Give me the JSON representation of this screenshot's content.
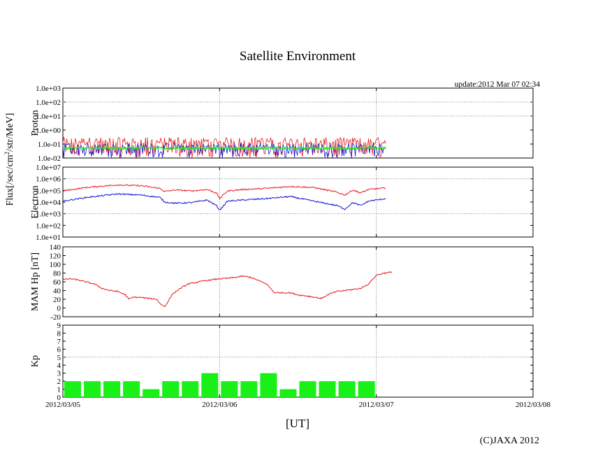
{
  "title": "Satellite Environment",
  "update": "update:2012 Mar 07 02:34",
  "copyright": "(C)JAXA 2012",
  "xlabel": "[UT]",
  "xticks": [
    "2012/03/05",
    "2012/03/06",
    "2012/03/07",
    "2012/03/08"
  ],
  "flux_label": "Flux[/sec/cm2/str/MeV]",
  "colors": {
    "red": "#e8191e",
    "blue": "#1414d2",
    "green": "#18f018",
    "grid": "#999999"
  },
  "chart_data": [
    {
      "type": "line",
      "panel": "proton",
      "ylabel": "Proton",
      "yscale": "log",
      "ylim": [
        0.01,
        1000
      ],
      "ytick_labels": [
        "1.0e+03",
        "1.0e+02",
        "1.0e+01",
        "1.0e+00",
        "1.0e-01",
        "1.0e-02"
      ],
      "xlim_days": [
        0,
        3
      ],
      "grid": "vertical dotted at day boundaries",
      "series": [
        {
          "color": "red",
          "x_range_days": [
            0,
            2.06
          ],
          "y_typical": 0.08,
          "y_max": 0.3,
          "y_min": 0.01
        },
        {
          "color": "blue",
          "x_range_days": [
            0,
            2.06
          ],
          "y_typical": 0.04,
          "y_max": 0.12,
          "y_min": 0.01
        },
        {
          "color": "green",
          "x_range_days": [
            0,
            2.06
          ],
          "y_typical": 0.05,
          "y_max": 0.07,
          "y_min": 0.04
        }
      ]
    },
    {
      "type": "line",
      "panel": "electron",
      "ylabel": "Electron",
      "yscale": "log",
      "ylim": [
        10,
        10000000
      ],
      "ytick_labels": [
        "1.0e+07",
        "1.0e+06",
        "1.0e+05",
        "1.0e+04",
        "1.0e+03",
        "1.0e+02",
        "1.0e+01"
      ],
      "xlim_days": [
        0,
        3
      ],
      "series": [
        {
          "color": "red",
          "x_days": [
            0,
            0.15,
            0.35,
            0.5,
            0.62,
            0.65,
            0.72,
            0.82,
            0.92,
            0.98,
            1.0,
            1.05,
            1.15,
            1.3,
            1.45,
            1.6,
            1.75,
            1.8,
            1.85,
            1.9,
            1.95,
            2.0,
            2.06
          ],
          "values": [
            90000,
            180000,
            300000,
            250000,
            150000,
            80000,
            110000,
            90000,
            120000,
            60000,
            20000,
            90000,
            120000,
            150000,
            220000,
            180000,
            70000,
            40000,
            110000,
            60000,
            120000,
            140000,
            160000
          ]
        },
        {
          "color": "blue",
          "x_days": [
            0,
            0.15,
            0.35,
            0.5,
            0.62,
            0.65,
            0.72,
            0.82,
            0.92,
            0.98,
            1.0,
            1.05,
            1.15,
            1.3,
            1.45,
            1.6,
            1.75,
            1.8,
            1.85,
            1.9,
            1.95,
            2.0,
            2.06
          ],
          "values": [
            12000,
            25000,
            50000,
            40000,
            25000,
            10000,
            8000,
            9000,
            15000,
            5000,
            2000,
            12000,
            15000,
            20000,
            30000,
            12000,
            5000,
            2500,
            9000,
            5000,
            12000,
            15000,
            20000
          ]
        }
      ]
    },
    {
      "type": "line",
      "panel": "mam_hp",
      "ylabel": "MAM Hp [nT]",
      "ylim": [
        -20,
        140
      ],
      "yticks": [
        -20,
        0,
        20,
        40,
        60,
        80,
        100,
        120,
        140
      ],
      "xlim_days": [
        0,
        3
      ],
      "series": [
        {
          "color": "red",
          "x_days": [
            0,
            0.05,
            0.1,
            0.2,
            0.25,
            0.3,
            0.35,
            0.4,
            0.42,
            0.45,
            0.5,
            0.55,
            0.6,
            0.62,
            0.65,
            0.7,
            0.75,
            0.8,
            0.9,
            1.0,
            1.05,
            1.1,
            1.15,
            1.2,
            1.3,
            1.35,
            1.45,
            1.5,
            1.55,
            1.6,
            1.65,
            1.7,
            1.75,
            1.8,
            1.9,
            1.95,
            2.0,
            2.05,
            2.1
          ],
          "values": [
            65,
            67,
            64,
            55,
            45,
            40,
            38,
            30,
            20,
            25,
            24,
            22,
            20,
            10,
            3,
            32,
            45,
            55,
            62,
            67,
            68,
            70,
            73,
            70,
            55,
            35,
            35,
            30,
            28,
            25,
            22,
            32,
            38,
            40,
            45,
            55,
            75,
            80,
            82
          ]
        }
      ]
    },
    {
      "type": "bar",
      "panel": "kp",
      "ylabel": "Kp",
      "ylim": [
        0,
        9
      ],
      "yticks": [
        0,
        1,
        2,
        3,
        4,
        5,
        6,
        7,
        8,
        9
      ],
      "xlim_days": [
        0,
        3
      ],
      "threshold_line": 5,
      "bar_width_days": 0.125,
      "values": [
        2,
        2,
        2,
        2,
        1,
        2,
        2,
        3,
        2,
        2,
        3,
        1,
        2,
        2,
        2,
        2
      ]
    }
  ]
}
